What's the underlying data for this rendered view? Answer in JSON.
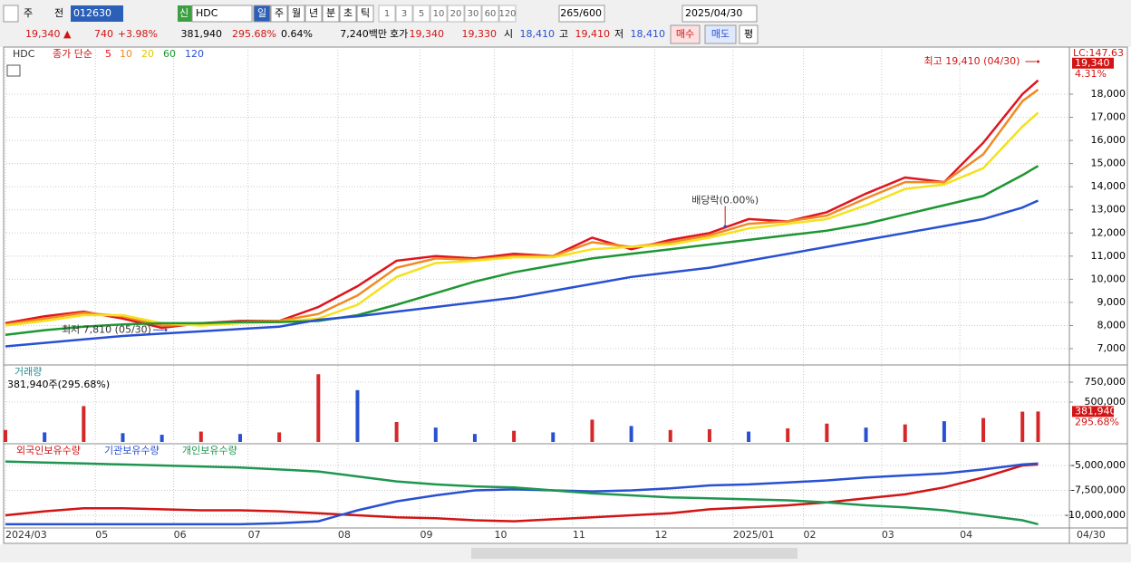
{
  "toolbar": {
    "market": "주",
    "prev": "전",
    "code": "012630",
    "new": "신",
    "name": "HDC",
    "period_tabs": [
      "일",
      "주",
      "월",
      "년",
      "분",
      "초",
      "틱"
    ],
    "intervals": [
      "1",
      "3",
      "5",
      "10",
      "20",
      "30",
      "60",
      "120"
    ],
    "count": "265/600",
    "date": "2025/04/30"
  },
  "quote": {
    "price": "19,340 ▲",
    "change": "740",
    "change_pct": "+3.98%",
    "volume": "381,940",
    "volume_pct": "295.68%",
    "turnover": "0.64%",
    "amount": "7,240백만",
    "bid_ask_label": "호가",
    "ask": "19,340",
    "bid": "19,330",
    "open_label": "시",
    "open": "18,410",
    "high_label": "고",
    "high": "19,410",
    "low_label": "저",
    "low": "18,410",
    "buy": "매수",
    "sell": "매도",
    "avg": "평"
  },
  "chart_data": [
    {
      "type": "line",
      "symbol": "HDC",
      "legend_title": "종가 단순",
      "x": [
        0,
        10,
        20,
        30,
        40,
        50,
        60,
        70,
        80,
        90,
        100,
        110,
        120,
        130,
        140,
        150,
        160,
        170,
        180,
        190,
        200,
        210,
        220,
        230,
        240,
        250,
        260,
        264
      ],
      "xlim": [
        0,
        272
      ],
      "ylim": [
        6335,
        20035
      ],
      "yticks": [
        {
          "value": 7000,
          "label": "7,000"
        },
        {
          "value": 8000,
          "label": "8,000"
        },
        {
          "value": 9000,
          "label": "9,000"
        },
        {
          "value": 10000,
          "label": "10,000"
        },
        {
          "value": 11000,
          "label": "11,000"
        },
        {
          "value": 12000,
          "label": "12,000"
        },
        {
          "value": 13000,
          "label": "13,000"
        },
        {
          "value": 14000,
          "label": "14,000"
        },
        {
          "value": 15000,
          "label": "15,000"
        },
        {
          "value": 16000,
          "label": "16,000"
        },
        {
          "value": 17000,
          "label": "17,000"
        },
        {
          "value": 18000,
          "label": "18,000"
        }
      ],
      "grid": true,
      "series": [
        {
          "name": "5",
          "color": "#e0141e",
          "values": [
            8100,
            8400,
            8600,
            8300,
            7900,
            8100,
            8200,
            8200,
            8800,
            9700,
            10800,
            11000,
            10900,
            11100,
            11000,
            11800,
            11300,
            11700,
            12000,
            12600,
            12500,
            12900,
            13700,
            14400,
            14200,
            15900,
            18000,
            18600
          ]
        },
        {
          "name": "10",
          "color": "#f08a24",
          "values": [
            8050,
            8300,
            8550,
            8400,
            8000,
            8050,
            8150,
            8200,
            8500,
            9300,
            10500,
            10900,
            10850,
            11000,
            11000,
            11600,
            11400,
            11600,
            11900,
            12400,
            12500,
            12750,
            13500,
            14200,
            14200,
            15400,
            17700,
            18200
          ]
        },
        {
          "name": "20",
          "color": "#f5e11e",
          "values": [
            8000,
            8200,
            8450,
            8450,
            8100,
            8000,
            8100,
            8150,
            8300,
            8900,
            10100,
            10700,
            10800,
            10950,
            10950,
            11300,
            11400,
            11500,
            11800,
            12200,
            12400,
            12600,
            13200,
            13900,
            14100,
            14800,
            16600,
            17200
          ]
        },
        {
          "name": "60",
          "color": "#1e9632",
          "values": [
            7600,
            7800,
            7950,
            8050,
            8100,
            8100,
            8150,
            8150,
            8200,
            8450,
            8900,
            9400,
            9900,
            10300,
            10600,
            10900,
            11100,
            11300,
            11500,
            11700,
            11900,
            12100,
            12400,
            12800,
            13200,
            13600,
            14500,
            14900
          ]
        },
        {
          "name": "120",
          "color": "#2850d2",
          "values": [
            7100,
            7250,
            7400,
            7550,
            7650,
            7750,
            7850,
            7950,
            8250,
            8400,
            8600,
            8800,
            9000,
            9200,
            9500,
            9800,
            10100,
            10300,
            10500,
            10800,
            11100,
            11400,
            11700,
            12000,
            12300,
            12600,
            13100,
            13400
          ]
        }
      ],
      "annotations": [
        {
          "text": "최고 19,410 (04/30)",
          "x": 264,
          "value": 19410
        },
        {
          "text": "최저 7,810 (05/30)",
          "x": 41,
          "value": 7810
        },
        {
          "text": "배당락(0.00%)",
          "x": 184,
          "value": 12300
        }
      ],
      "current_price": {
        "value": 19340,
        "label": "19,340"
      },
      "lc_label": "LC:147.63",
      "change_label": "4.31%"
    },
    {
      "type": "bar",
      "title": "거래량",
      "subtitle": "381,940주(295.68%)",
      "x": [
        0,
        10,
        20,
        30,
        40,
        50,
        60,
        70,
        80,
        90,
        100,
        110,
        120,
        130,
        140,
        150,
        160,
        170,
        180,
        190,
        200,
        210,
        220,
        230,
        240,
        250,
        260,
        264
      ],
      "values": [
        150000,
        120000,
        450000,
        110000,
        90000,
        130000,
        100000,
        120000,
        850000,
        650000,
        250000,
        180000,
        100000,
        140000,
        120000,
        280000,
        200000,
        150000,
        160000,
        130000,
        170000,
        230000,
        180000,
        220000,
        260000,
        300000,
        380000,
        381940
      ],
      "colors": [
        "#d62728",
        "#2850d2",
        "#d62728",
        "#2850d2",
        "#2850d2",
        "#d62728",
        "#2850d2",
        "#d62728",
        "#d62728",
        "#2850d2",
        "#d62728",
        "#2850d2",
        "#2850d2",
        "#d62728",
        "#2850d2",
        "#d62728",
        "#2850d2",
        "#d62728",
        "#d62728",
        "#2850d2",
        "#d62728",
        "#d62728",
        "#2850d2",
        "#d62728",
        "#2850d2",
        "#d62728",
        "#d62728",
        "#d62728"
      ],
      "xlim": [
        0,
        272
      ],
      "ylim": [
        0,
        955000
      ],
      "yticks": [
        {
          "value": 500000,
          "label": "500,000"
        },
        {
          "value": 750000,
          "label": "750,000"
        }
      ],
      "current": {
        "value": 381940,
        "label": "381,940"
      },
      "current_pct": "295.68%"
    },
    {
      "type": "line",
      "x": [
        0,
        10,
        20,
        30,
        40,
        50,
        60,
        70,
        80,
        90,
        100,
        110,
        120,
        130,
        140,
        150,
        160,
        170,
        180,
        190,
        200,
        210,
        220,
        230,
        240,
        250,
        260,
        264
      ],
      "xlim": [
        0,
        272
      ],
      "ylim": [
        -11180000,
        -3000000
      ],
      "yticks": [
        {
          "value": -5000000,
          "label": "-5,000,000"
        },
        {
          "value": -7500000,
          "label": "-7,500,000"
        },
        {
          "value": -10000000,
          "label": "-10,000,000"
        }
      ],
      "xticks": [
        {
          "value": 0,
          "label": "2024/03"
        },
        {
          "value": 23,
          "label": "05"
        },
        {
          "value": 43,
          "label": "06"
        },
        {
          "value": 62,
          "label": "07"
        },
        {
          "value": 85,
          "label": "08"
        },
        {
          "value": 106,
          "label": "09"
        },
        {
          "value": 125,
          "label": "10"
        },
        {
          "value": 145,
          "label": "11"
        },
        {
          "value": 166,
          "label": "12"
        },
        {
          "value": 186,
          "label": "2025/01"
        },
        {
          "value": 204,
          "label": "02"
        },
        {
          "value": 224,
          "label": "03"
        },
        {
          "value": 244,
          "label": "04"
        }
      ],
      "end_label": "04/30",
      "series": [
        {
          "name": "외국인보유수량",
          "color": "#d21414",
          "values": [
            -10000000,
            -9600000,
            -9300000,
            -9300000,
            -9400000,
            -9500000,
            -9500000,
            -9600000,
            -9800000,
            -10000000,
            -10200000,
            -10300000,
            -10500000,
            -10600000,
            -10400000,
            -10200000,
            -10000000,
            -9800000,
            -9400000,
            -9200000,
            -9000000,
            -8700000,
            -8300000,
            -7900000,
            -7200000,
            -6200000,
            -5000000,
            -4900000
          ]
        },
        {
          "name": "기관보유수량",
          "color": "#2850d2",
          "values": [
            -10900000,
            -10900000,
            -10900000,
            -10900000,
            -10900000,
            -10900000,
            -10900000,
            -10800000,
            -10600000,
            -9500000,
            -8600000,
            -8000000,
            -7500000,
            -7400000,
            -7500000,
            -7600000,
            -7500000,
            -7300000,
            -7000000,
            -6900000,
            -6700000,
            -6500000,
            -6200000,
            -6000000,
            -5800000,
            -5400000,
            -4900000,
            -4800000
          ]
        },
        {
          "name": "개인보유수량",
          "color": "#1e9650",
          "values": [
            -4600000,
            -4700000,
            -4800000,
            -4900000,
            -5000000,
            -5100000,
            -5200000,
            -5400000,
            -5600000,
            -6100000,
            -6600000,
            -6900000,
            -7100000,
            -7200000,
            -7500000,
            -7800000,
            -8000000,
            -8200000,
            -8300000,
            -8400000,
            -8500000,
            -8700000,
            -9000000,
            -9200000,
            -9500000,
            -10000000,
            -10500000,
            -10900000
          ]
        }
      ]
    }
  ]
}
